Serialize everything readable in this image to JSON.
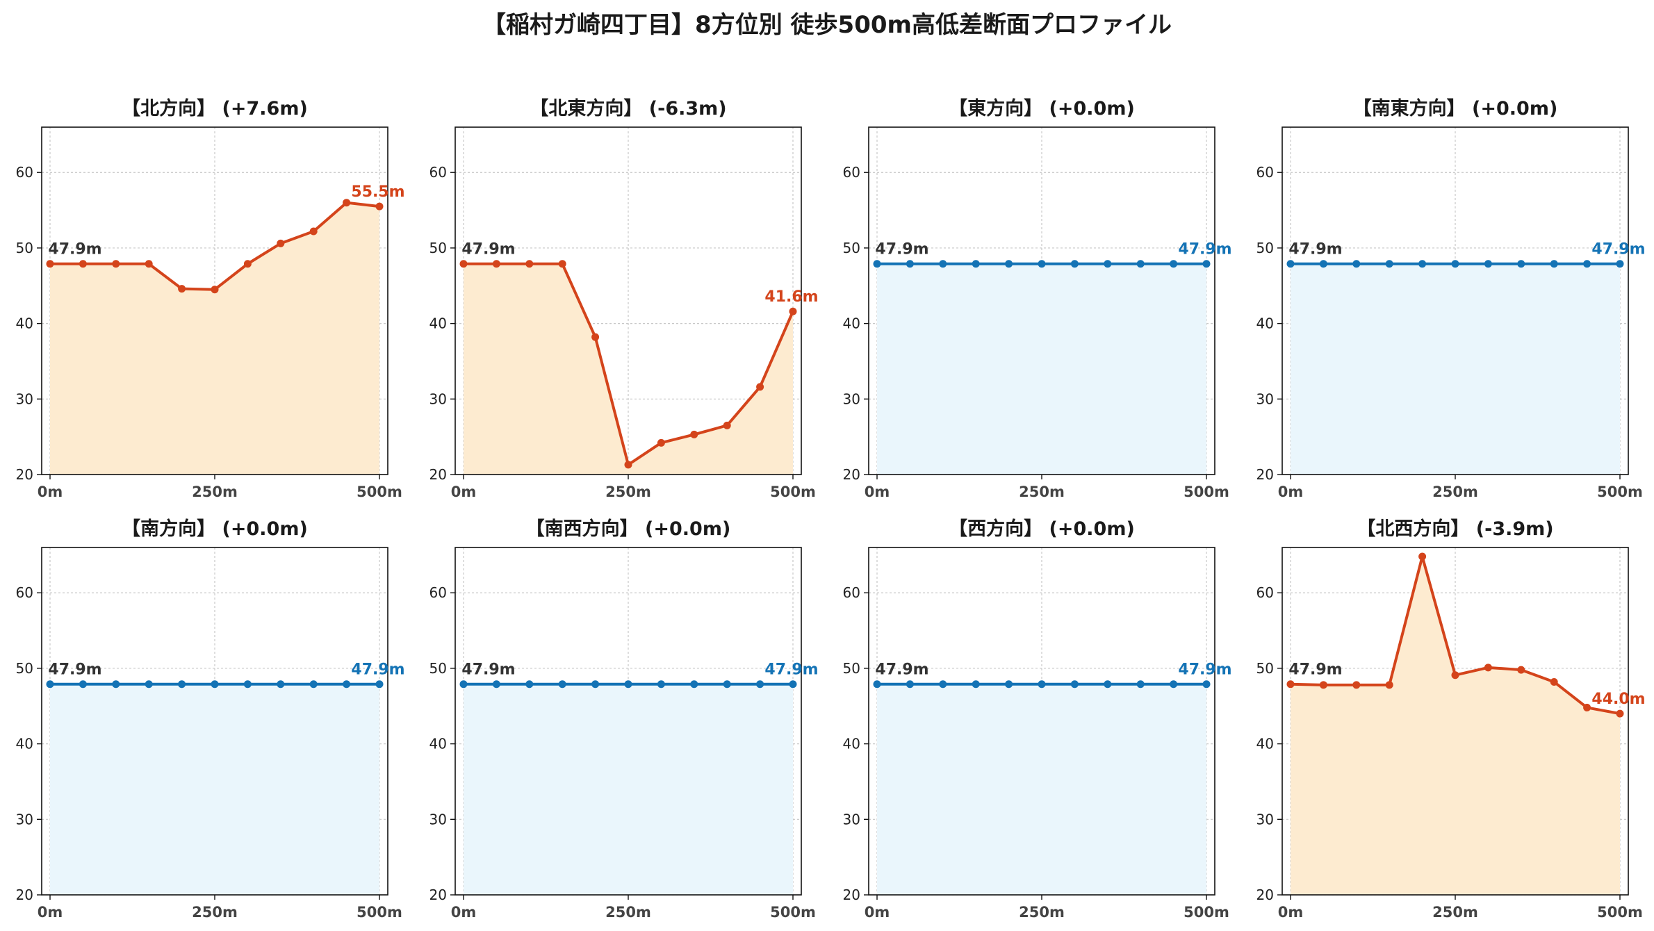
{
  "title": "【稲村ガ崎四丁目】8方位別 徒歩500m高低差断面プロファイル",
  "colors": {
    "up_line": "#d4441b",
    "up_fill": "#fdebd0",
    "flat_line": "#1473b5",
    "flat_fill": "#eaf6fc",
    "start_label": "#333333",
    "grid": "#c8c8c8"
  },
  "chart_data": [
    {
      "type": "area",
      "title": "【北方向】 (+7.6m)",
      "x": [
        0,
        50,
        100,
        150,
        200,
        250,
        300,
        350,
        400,
        450,
        500
      ],
      "xticks": [
        "0m",
        "250m",
        "500m"
      ],
      "ylim": [
        20,
        66
      ],
      "yticks": [
        20,
        30,
        40,
        50,
        60
      ],
      "grid": true,
      "trend": "change",
      "values": [
        47.9,
        47.9,
        47.9,
        47.9,
        44.6,
        44.5,
        47.9,
        50.6,
        52.2,
        56.0,
        55.5
      ],
      "start_label": "47.9m",
      "end_label": "55.5m"
    },
    {
      "type": "area",
      "title": "【北東方向】 (-6.3m)",
      "x": [
        0,
        50,
        100,
        150,
        200,
        250,
        300,
        350,
        400,
        450,
        500
      ],
      "xticks": [
        "0m",
        "250m",
        "500m"
      ],
      "ylim": [
        20,
        66
      ],
      "yticks": [
        20,
        30,
        40,
        50,
        60
      ],
      "grid": true,
      "trend": "change",
      "values": [
        47.9,
        47.9,
        47.9,
        47.9,
        38.2,
        21.3,
        24.2,
        25.3,
        26.5,
        31.6,
        41.6
      ],
      "start_label": "47.9m",
      "end_label": "41.6m"
    },
    {
      "type": "area",
      "title": "【東方向】 (+0.0m)",
      "x": [
        0,
        50,
        100,
        150,
        200,
        250,
        300,
        350,
        400,
        450,
        500
      ],
      "xticks": [
        "0m",
        "250m",
        "500m"
      ],
      "ylim": [
        20,
        66
      ],
      "yticks": [
        20,
        30,
        40,
        50,
        60
      ],
      "grid": true,
      "trend": "flat",
      "values": [
        47.9,
        47.9,
        47.9,
        47.9,
        47.9,
        47.9,
        47.9,
        47.9,
        47.9,
        47.9,
        47.9
      ],
      "start_label": "47.9m",
      "end_label": "47.9m"
    },
    {
      "type": "area",
      "title": "【南東方向】 (+0.0m)",
      "x": [
        0,
        50,
        100,
        150,
        200,
        250,
        300,
        350,
        400,
        450,
        500
      ],
      "xticks": [
        "0m",
        "250m",
        "500m"
      ],
      "ylim": [
        20,
        66
      ],
      "yticks": [
        20,
        30,
        40,
        50,
        60
      ],
      "grid": true,
      "trend": "flat",
      "values": [
        47.9,
        47.9,
        47.9,
        47.9,
        47.9,
        47.9,
        47.9,
        47.9,
        47.9,
        47.9,
        47.9
      ],
      "start_label": "47.9m",
      "end_label": "47.9m"
    },
    {
      "type": "area",
      "title": "【南方向】 (+0.0m)",
      "x": [
        0,
        50,
        100,
        150,
        200,
        250,
        300,
        350,
        400,
        450,
        500
      ],
      "xticks": [
        "0m",
        "250m",
        "500m"
      ],
      "ylim": [
        20,
        66
      ],
      "yticks": [
        20,
        30,
        40,
        50,
        60
      ],
      "grid": true,
      "trend": "flat",
      "values": [
        47.9,
        47.9,
        47.9,
        47.9,
        47.9,
        47.9,
        47.9,
        47.9,
        47.9,
        47.9,
        47.9
      ],
      "start_label": "47.9m",
      "end_label": "47.9m"
    },
    {
      "type": "area",
      "title": "【南西方向】 (+0.0m)",
      "x": [
        0,
        50,
        100,
        150,
        200,
        250,
        300,
        350,
        400,
        450,
        500
      ],
      "xticks": [
        "0m",
        "250m",
        "500m"
      ],
      "ylim": [
        20,
        66
      ],
      "yticks": [
        20,
        30,
        40,
        50,
        60
      ],
      "grid": true,
      "trend": "flat",
      "values": [
        47.9,
        47.9,
        47.9,
        47.9,
        47.9,
        47.9,
        47.9,
        47.9,
        47.9,
        47.9,
        47.9
      ],
      "start_label": "47.9m",
      "end_label": "47.9m"
    },
    {
      "type": "area",
      "title": "【西方向】 (+0.0m)",
      "x": [
        0,
        50,
        100,
        150,
        200,
        250,
        300,
        350,
        400,
        450,
        500
      ],
      "xticks": [
        "0m",
        "250m",
        "500m"
      ],
      "ylim": [
        20,
        66
      ],
      "yticks": [
        20,
        30,
        40,
        50,
        60
      ],
      "grid": true,
      "trend": "flat",
      "values": [
        47.9,
        47.9,
        47.9,
        47.9,
        47.9,
        47.9,
        47.9,
        47.9,
        47.9,
        47.9,
        47.9
      ],
      "start_label": "47.9m",
      "end_label": "47.9m"
    },
    {
      "type": "area",
      "title": "【北西方向】 (-3.9m)",
      "x": [
        0,
        50,
        100,
        150,
        200,
        250,
        300,
        350,
        400,
        450,
        500
      ],
      "xticks": [
        "0m",
        "250m",
        "500m"
      ],
      "ylim": [
        20,
        66
      ],
      "yticks": [
        20,
        30,
        40,
        50,
        60
      ],
      "grid": true,
      "trend": "change",
      "values": [
        47.9,
        47.8,
        47.8,
        47.8,
        64.8,
        49.1,
        50.1,
        49.8,
        48.2,
        44.8,
        44.0
      ],
      "start_label": "47.9m",
      "end_label": "44.0m"
    }
  ]
}
